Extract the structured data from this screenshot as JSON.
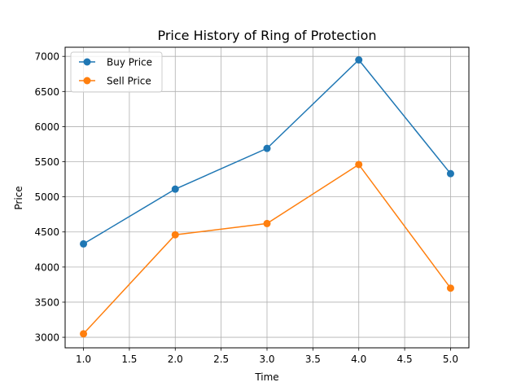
{
  "chart_data": {
    "type": "line",
    "title": "Price History of Ring of Protection",
    "xlabel": "Time",
    "ylabel": "Price",
    "x": [
      1.0,
      2.0,
      3.0,
      4.0,
      5.0
    ],
    "xlim": [
      0.8,
      5.2
    ],
    "ylim": [
      2850,
      7130
    ],
    "xticks": [
      1.0,
      1.5,
      2.0,
      2.5,
      3.0,
      3.5,
      4.0,
      4.5,
      5.0
    ],
    "xtick_labels": [
      "1.0",
      "1.5",
      "2.0",
      "2.5",
      "3.0",
      "3.5",
      "4.0",
      "4.5",
      "5.0"
    ],
    "yticks": [
      3000,
      3500,
      4000,
      4500,
      5000,
      5500,
      6000,
      6500,
      7000
    ],
    "ytick_labels": [
      "3000",
      "3500",
      "4000",
      "4500",
      "5000",
      "5500",
      "6000",
      "6500",
      "7000"
    ],
    "grid": true,
    "legend_position": "top-left",
    "series": [
      {
        "name": "Buy Price",
        "color": "#1f77b4",
        "marker": "circle",
        "values": [
          4330,
          5110,
          5690,
          6950,
          5330
        ]
      },
      {
        "name": "Sell Price",
        "color": "#ff7f0e",
        "marker": "circle",
        "values": [
          3050,
          4460,
          4620,
          5460,
          3700
        ]
      }
    ]
  }
}
